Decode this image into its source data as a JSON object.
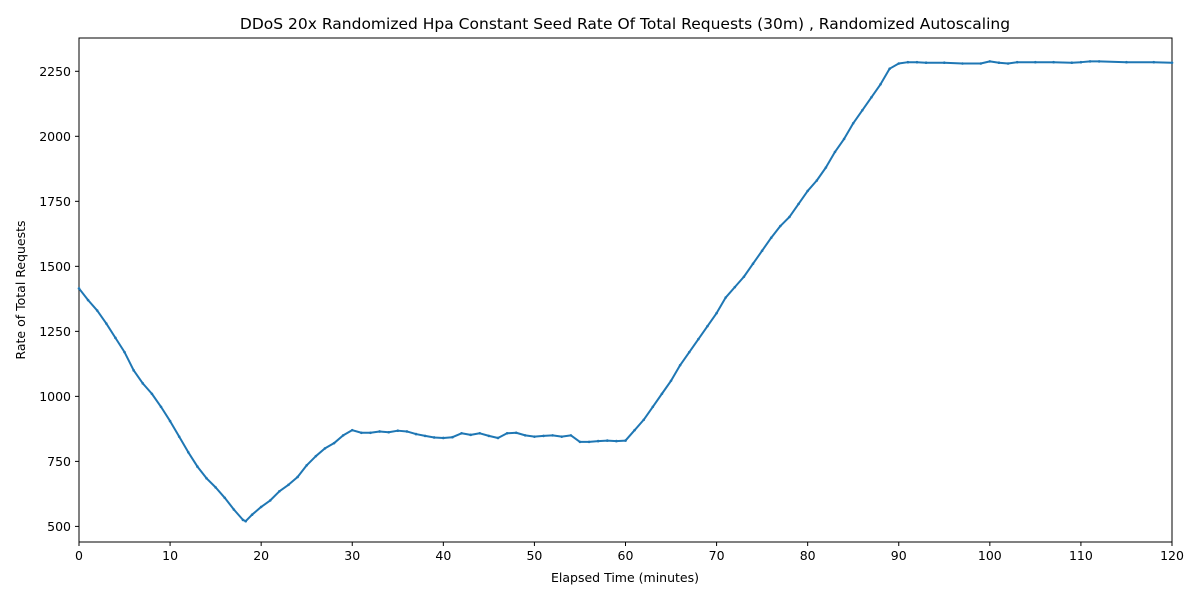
{
  "chart_data": {
    "type": "line",
    "title": "DDoS 20x Randomized Hpa Constant Seed Rate Of Total Requests (30m) , Randomized Autoscaling",
    "xlabel": "Elapsed Time (minutes)",
    "ylabel": "Rate of Total Requests",
    "xlim": [
      0,
      120
    ],
    "ylim": [
      440,
      2378
    ],
    "x_ticks": [
      "0",
      "10",
      "20",
      "30",
      "40",
      "50",
      "60",
      "70",
      "80",
      "90",
      "100",
      "110",
      "120"
    ],
    "y_ticks": [
      "500",
      "750",
      "1000",
      "1250",
      "1500",
      "1750",
      "2000",
      "2250"
    ],
    "grid": false,
    "legend": "none",
    "series_color": "#1f77b4",
    "series": [
      {
        "x": [
          0,
          1,
          2,
          3,
          4,
          5,
          6,
          7,
          8,
          9,
          10,
          11,
          12,
          13,
          14,
          15,
          16,
          17,
          18,
          18.3,
          19,
          20,
          21,
          22,
          23,
          24,
          25,
          26,
          27,
          28,
          29,
          30,
          31,
          32,
          33,
          34,
          35,
          36,
          37,
          38,
          39,
          40,
          41,
          42,
          43,
          44,
          45,
          46,
          47,
          48,
          49,
          50,
          51,
          52,
          53,
          54,
          55,
          56,
          57,
          58,
          59,
          60,
          61,
          62,
          63,
          64,
          65,
          66,
          67,
          68,
          69,
          70,
          71,
          72,
          73,
          74,
          75,
          76,
          77,
          78,
          79,
          80,
          81,
          82,
          83,
          84,
          85,
          86,
          87,
          88,
          89,
          90,
          91,
          92,
          93,
          95,
          97,
          99,
          100,
          101,
          102,
          103,
          105,
          107,
          109,
          110,
          111,
          112,
          115,
          118,
          120
        ],
        "y": [
          1415,
          1370,
          1330,
          1280,
          1225,
          1170,
          1100,
          1050,
          1010,
          960,
          905,
          845,
          785,
          730,
          685,
          650,
          610,
          565,
          525,
          520,
          545,
          575,
          600,
          635,
          660,
          690,
          735,
          770,
          800,
          820,
          850,
          870,
          860,
          860,
          865,
          862,
          868,
          865,
          855,
          848,
          842,
          840,
          843,
          858,
          852,
          858,
          848,
          840,
          858,
          860,
          850,
          845,
          848,
          850,
          845,
          850,
          825,
          825,
          828,
          830,
          828,
          830,
          870,
          910,
          960,
          1010,
          1060,
          1120,
          1170,
          1220,
          1270,
          1320,
          1380,
          1420,
          1460,
          1510,
          1560,
          1610,
          1655,
          1690,
          1740,
          1790,
          1830,
          1880,
          1940,
          1990,
          2050,
          2100,
          2150,
          2200,
          2260,
          2280,
          2285,
          2285,
          2283,
          2283,
          2280,
          2280,
          2288,
          2283,
          2280,
          2285,
          2285,
          2285,
          2283,
          2285,
          2288,
          2288,
          2285,
          2285,
          2283
        ]
      }
    ]
  }
}
